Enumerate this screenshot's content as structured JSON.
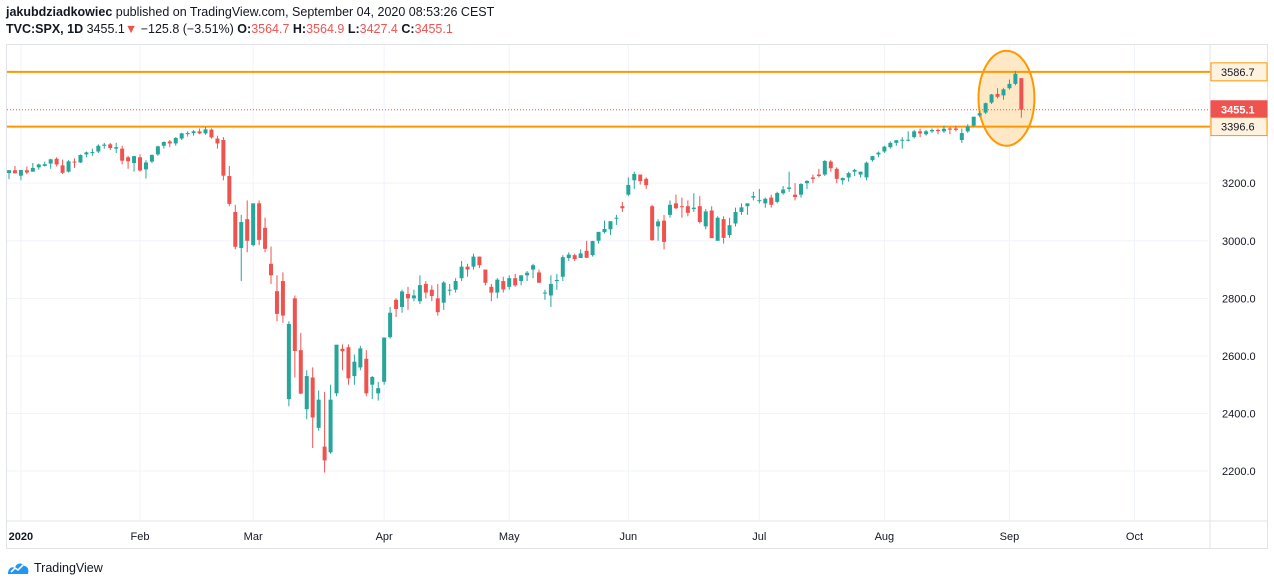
{
  "header": {
    "author": "jakubdziadkowiec",
    "published": "published on TradingView.com, September 04, 2020 08:53:26 CEST",
    "symbol": "TVC:SPX, 1D",
    "last": "3455.1",
    "change": "−125.8 (−3.51%)",
    "o_label": "O:",
    "o_value": "3564.7",
    "h_label": "H:",
    "h_value": "3564.9",
    "l_label": "L:",
    "l_value": "3427.4",
    "c_label": "C:",
    "c_value": "3455.1"
  },
  "footer": {
    "brand": "TradingView"
  },
  "colors": {
    "up": "#26a69a",
    "down": "#ef5350",
    "level": "#ff9800",
    "circle_fill": "#ffe0b2",
    "grid": "#f0f3fa"
  },
  "chart_data": {
    "type": "candlestick",
    "x_axis_labels": [
      {
        "label": "2020",
        "index": 2
      },
      {
        "label": "Feb",
        "index": 22
      },
      {
        "label": "Mar",
        "index": 41
      },
      {
        "label": "Apr",
        "index": 63
      },
      {
        "label": "May",
        "index": 84
      },
      {
        "label": "Jun",
        "index": 104
      },
      {
        "label": "Jul",
        "index": 126
      },
      {
        "label": "Aug",
        "index": 147
      },
      {
        "label": "Sep",
        "index": 168
      },
      {
        "label": "Oct",
        "index": 189
      }
    ],
    "y_ticks": [
      "2200.0",
      "2400.0",
      "2600.0",
      "2800.0",
      "3000.0",
      "3200.0"
    ],
    "y_range": [
      2030,
      3680
    ],
    "levels": [
      {
        "name": "resistance",
        "value": 3586.7,
        "label": "3586.7",
        "style": "solid"
      },
      {
        "name": "last-price",
        "value": 3455.1,
        "label": "3455.1",
        "style": "dotted"
      },
      {
        "name": "support",
        "value": 3396.6,
        "label": "3396.6",
        "style": "solid"
      }
    ],
    "annotations": [
      {
        "type": "ellipse",
        "from_index": 166,
        "to_index": 169,
        "y_low": 3330,
        "y_high": 3660
      }
    ],
    "candles": [
      [
        3235,
        3246,
        3214,
        3245
      ],
      [
        3245,
        3260,
        3234,
        3234
      ],
      [
        3226,
        3246,
        3210,
        3246
      ],
      [
        3245,
        3258,
        3231,
        3237
      ],
      [
        3240,
        3270,
        3240,
        3253
      ],
      [
        3255,
        3268,
        3247,
        3265
      ],
      [
        3260,
        3275,
        3258,
        3266
      ],
      [
        3268,
        3285,
        3250,
        3283
      ],
      [
        3285,
        3290,
        3258,
        3265
      ],
      [
        3262,
        3282,
        3232,
        3236
      ],
      [
        3240,
        3280,
        3237,
        3276
      ],
      [
        3275,
        3286,
        3253,
        3273
      ],
      [
        3272,
        3300,
        3270,
        3298
      ],
      [
        3300,
        3310,
        3290,
        3307
      ],
      [
        3305,
        3320,
        3295,
        3308
      ],
      [
        3310,
        3335,
        3305,
        3330
      ],
      [
        3330,
        3340,
        3320,
        3334
      ],
      [
        3335,
        3340,
        3315,
        3322
      ],
      [
        3320,
        3340,
        3305,
        3325
      ],
      [
        3320,
        3330,
        3265,
        3278
      ],
      [
        3290,
        3295,
        3250,
        3276
      ],
      [
        3270,
        3295,
        3240,
        3294
      ],
      [
        3290,
        3300,
        3240,
        3244
      ],
      [
        3248,
        3280,
        3216,
        3272
      ],
      [
        3275,
        3300,
        3270,
        3298
      ],
      [
        3300,
        3330,
        3295,
        3328
      ],
      [
        3330,
        3345,
        3320,
        3343
      ],
      [
        3345,
        3350,
        3325,
        3338
      ],
      [
        3338,
        3360,
        3330,
        3357
      ],
      [
        3355,
        3375,
        3350,
        3373
      ],
      [
        3373,
        3380,
        3362,
        3374
      ],
      [
        3374,
        3385,
        3365,
        3380
      ],
      [
        3380,
        3390,
        3370,
        3373
      ],
      [
        3373,
        3395,
        3368,
        3387
      ],
      [
        3386,
        3390,
        3355,
        3359
      ],
      [
        3355,
        3365,
        3320,
        3338
      ],
      [
        3350,
        3360,
        3210,
        3226
      ],
      [
        3225,
        3260,
        3120,
        3128
      ],
      [
        3100,
        3125,
        2970,
        2979
      ],
      [
        2975,
        3090,
        2860,
        3065
      ],
      [
        3075,
        3140,
        2960,
        3000
      ],
      [
        2985,
        3130,
        2980,
        3130
      ],
      [
        3130,
        3140,
        2985,
        3003
      ],
      [
        3045,
        3080,
        2960,
        2972
      ],
      [
        2920,
        2980,
        2850,
        2880
      ],
      [
        2825,
        2880,
        2720,
        2746
      ],
      [
        2860,
        2890,
        2715,
        2740
      ],
      [
        2450,
        2720,
        2425,
        2711
      ],
      [
        2800,
        2810,
        2525,
        2617
      ],
      [
        2620,
        2680,
        2467,
        2469
      ],
      [
        2415,
        2550,
        2380,
        2530
      ],
      [
        2525,
        2560,
        2280,
        2386
      ],
      [
        2350,
        2480,
        2340,
        2448
      ],
      [
        2285,
        2475,
        2195,
        2237
      ],
      [
        2265,
        2500,
        2260,
        2448
      ],
      [
        2470,
        2630,
        2460,
        2639
      ],
      [
        2625,
        2640,
        2550,
        2616
      ],
      [
        2630,
        2640,
        2500,
        2522
      ],
      [
        2530,
        2605,
        2500,
        2580
      ],
      [
        2560,
        2635,
        2550,
        2626
      ],
      [
        2590,
        2620,
        2460,
        2470
      ],
      [
        2500,
        2530,
        2450,
        2527
      ],
      [
        2470,
        2510,
        2445,
        2488
      ],
      [
        2510,
        2660,
        2500,
        2664
      ],
      [
        2665,
        2770,
        2660,
        2750
      ],
      [
        2795,
        2800,
        2735,
        2763
      ],
      [
        2770,
        2830,
        2750,
        2824
      ],
      [
        2815,
        2840,
        2760,
        2800
      ],
      [
        2800,
        2830,
        2790,
        2810
      ],
      [
        2790,
        2880,
        2780,
        2846
      ],
      [
        2850,
        2860,
        2800,
        2820
      ],
      [
        2830,
        2845,
        2790,
        2808
      ],
      [
        2800,
        2850,
        2740,
        2752
      ],
      [
        2785,
        2860,
        2760,
        2855
      ],
      [
        2830,
        2850,
        2810,
        2830
      ],
      [
        2830,
        2870,
        2820,
        2860
      ],
      [
        2870,
        2930,
        2860,
        2910
      ],
      [
        2910,
        2920,
        2875,
        2900
      ],
      [
        2910,
        2955,
        2900,
        2945
      ],
      [
        2945,
        2945,
        2905,
        2915
      ],
      [
        2900,
        2900,
        2845,
        2854
      ],
      [
        2840,
        2850,
        2790,
        2820
      ],
      [
        2820,
        2870,
        2800,
        2865
      ],
      [
        2860,
        2875,
        2820,
        2831
      ],
      [
        2840,
        2880,
        2830,
        2870
      ],
      [
        2870,
        2885,
        2840,
        2845
      ],
      [
        2860,
        2880,
        2845,
        2880
      ],
      [
        2880,
        2895,
        2860,
        2889
      ],
      [
        2900,
        2920,
        2870,
        2915
      ],
      [
        2890,
        2900,
        2855,
        2854
      ],
      [
        2820,
        2830,
        2795,
        2820
      ],
      [
        2810,
        2880,
        2770,
        2850
      ],
      [
        2860,
        2885,
        2830,
        2864
      ],
      [
        2875,
        2950,
        2860,
        2943
      ],
      [
        2940,
        2960,
        2930,
        2952
      ],
      [
        2950,
        2955,
        2930,
        2936
      ],
      [
        2940,
        2970,
        2940,
        2956
      ],
      [
        2965,
        3000,
        2940,
        2941
      ],
      [
        2950,
        3000,
        2945,
        2999
      ],
      [
        3000,
        3030,
        2990,
        3031
      ],
      [
        3030,
        3070,
        3025,
        3041
      ],
      [
        3040,
        3065,
        3020,
        3068
      ],
      [
        3080,
        3090,
        3055,
        3080
      ],
      [
        3120,
        3135,
        3100,
        3113
      ],
      [
        3160,
        3220,
        3155,
        3194
      ],
      [
        3210,
        3240,
        3180,
        3232
      ],
      [
        3230,
        3230,
        3195,
        3207
      ],
      [
        3215,
        3220,
        3180,
        3193
      ],
      [
        3120,
        3125,
        3000,
        3002
      ],
      [
        3050,
        3075,
        3000,
        3067
      ],
      [
        3070,
        3090,
        2970,
        2996
      ],
      [
        3090,
        3140,
        3080,
        3125
      ],
      [
        3130,
        3160,
        3110,
        3113
      ],
      [
        3120,
        3150,
        3080,
        3117
      ],
      [
        3120,
        3140,
        3085,
        3097
      ],
      [
        3110,
        3165,
        3100,
        3115
      ],
      [
        3120,
        3155,
        3060,
        3065
      ],
      [
        3050,
        3110,
        3040,
        3102
      ],
      [
        3105,
        3120,
        3020,
        3009
      ],
      [
        3000,
        3085,
        3000,
        3080
      ],
      [
        3075,
        3085,
        2990,
        3010
      ],
      [
        3020,
        3080,
        3010,
        3054
      ],
      [
        3060,
        3115,
        3050,
        3100
      ],
      [
        3100,
        3130,
        3090,
        3116
      ],
      [
        3120,
        3130,
        3090,
        3130
      ],
      [
        3150,
        3170,
        3140,
        3155
      ],
      [
        3140,
        3180,
        3130,
        3141
      ],
      [
        3130,
        3150,
        3115,
        3146
      ],
      [
        3150,
        3160,
        3115,
        3125
      ],
      [
        3135,
        3170,
        3130,
        3166
      ],
      [
        3165,
        3190,
        3160,
        3178
      ],
      [
        3180,
        3240,
        3170,
        3185
      ],
      [
        3160,
        3200,
        3140,
        3152
      ],
      [
        3160,
        3200,
        3150,
        3197
      ],
      [
        3200,
        3210,
        3180,
        3208
      ],
      [
        3220,
        3230,
        3200,
        3215
      ],
      [
        3230,
        3250,
        3220,
        3225
      ],
      [
        3230,
        3280,
        3225,
        3277
      ],
      [
        3275,
        3280,
        3240,
        3252
      ],
      [
        3250,
        3255,
        3200,
        3215
      ],
      [
        3210,
        3220,
        3195,
        3218
      ],
      [
        3220,
        3240,
        3205,
        3235
      ],
      [
        3240,
        3250,
        3225,
        3246
      ],
      [
        3230,
        3240,
        3220,
        3240
      ],
      [
        3220,
        3275,
        3210,
        3271
      ],
      [
        3280,
        3295,
        3275,
        3294
      ],
      [
        3300,
        3310,
        3290,
        3306
      ],
      [
        3310,
        3330,
        3305,
        3327
      ],
      [
        3325,
        3345,
        3320,
        3340
      ],
      [
        3340,
        3350,
        3330,
        3349
      ],
      [
        3350,
        3360,
        3320,
        3351
      ],
      [
        3350,
        3380,
        3345,
        3351
      ],
      [
        3360,
        3385,
        3355,
        3380
      ],
      [
        3380,
        3390,
        3360,
        3373
      ],
      [
        3370,
        3385,
        3365,
        3380
      ],
      [
        3380,
        3390,
        3375,
        3385
      ],
      [
        3385,
        3390,
        3370,
        3381
      ],
      [
        3380,
        3400,
        3375,
        3389
      ],
      [
        3390,
        3395,
        3370,
        3386
      ],
      [
        3390,
        3400,
        3380,
        3385
      ],
      [
        3350,
        3390,
        3340,
        3374
      ],
      [
        3380,
        3405,
        3375,
        3397
      ],
      [
        3400,
        3420,
        3395,
        3431
      ],
      [
        3435,
        3450,
        3430,
        3443
      ],
      [
        3445,
        3480,
        3440,
        3478
      ],
      [
        3480,
        3510,
        3475,
        3508
      ],
      [
        3510,
        3530,
        3495,
        3500
      ],
      [
        3505,
        3530,
        3490,
        3526
      ],
      [
        3530,
        3560,
        3525,
        3545
      ],
      [
        3545,
        3590,
        3540,
        3580
      ],
      [
        3564.7,
        3564.9,
        3427.4,
        3455.1
      ]
    ]
  }
}
